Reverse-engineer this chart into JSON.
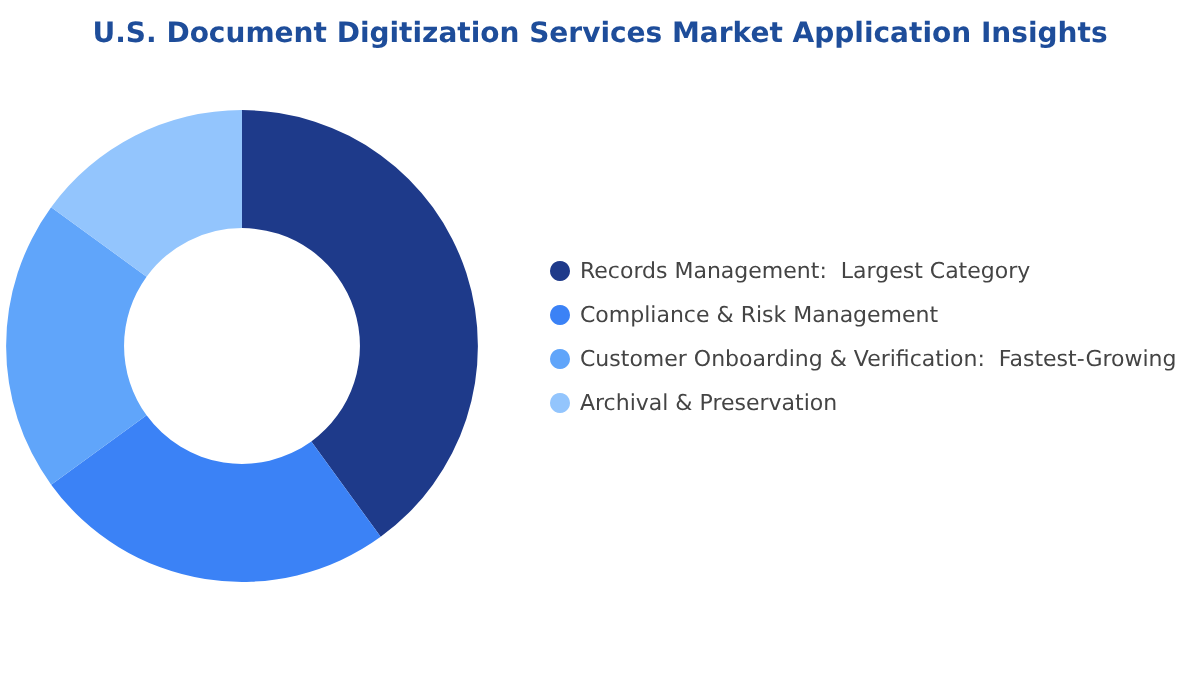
{
  "chart_data": {
    "type": "donut",
    "title": "U.S. Document Digitization Services Market Application Insights",
    "categories": [
      "Records Management:  Largest Category",
      "Compliance & Risk Management",
      "Customer Onboarding & Verification:  Fastest-Growing",
      "Archival & Preservation"
    ],
    "values": [
      40,
      25,
      20,
      15
    ],
    "colors": [
      "#1e3a8a",
      "#3b82f6",
      "#60a5fa",
      "#93c5fd"
    ],
    "legend": "right"
  }
}
